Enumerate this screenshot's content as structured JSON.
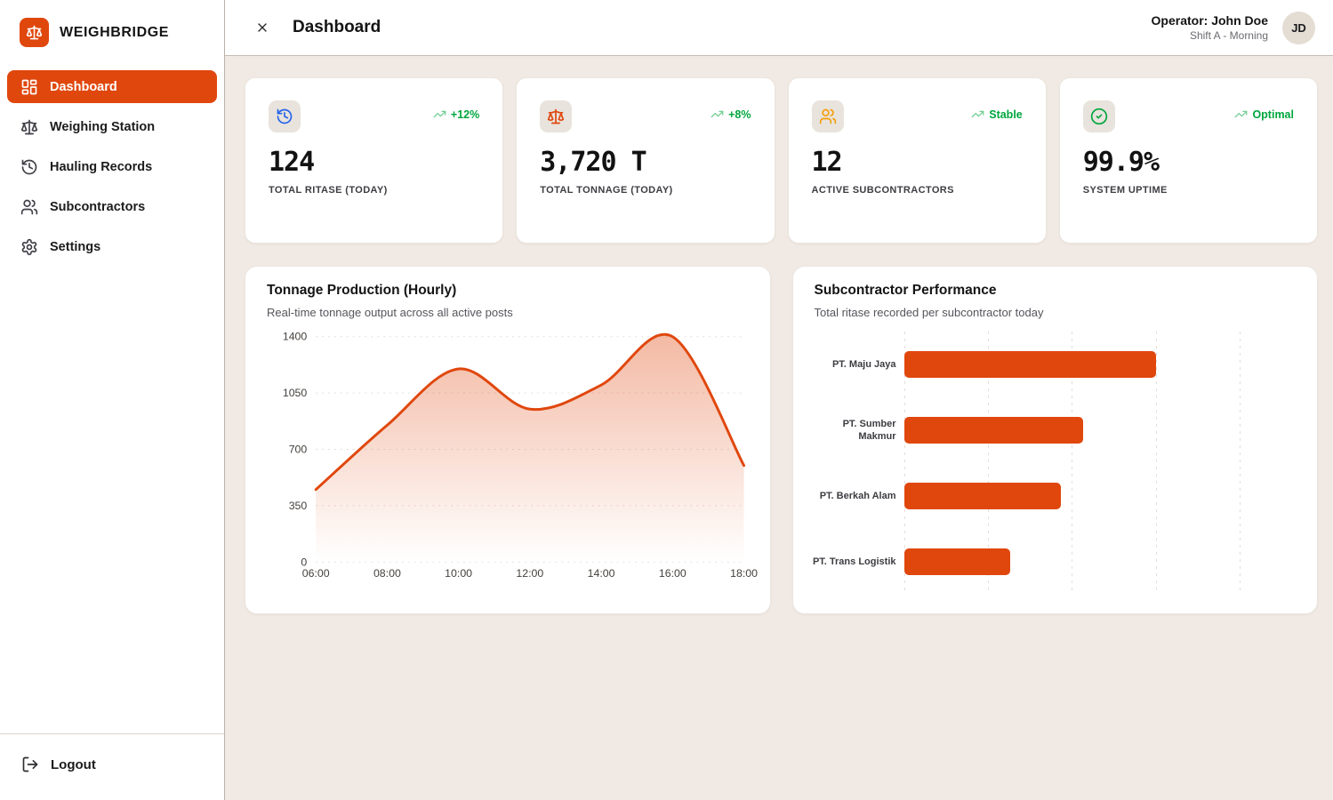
{
  "brand": {
    "name": "WEIGHBRIDGE"
  },
  "colors": {
    "primary": "#E0470D",
    "green": "#00A63E",
    "blue": "#2563EB",
    "amber": "#F59E0B",
    "content_background": "#F1EAE4"
  },
  "sidebar": {
    "items": [
      {
        "label": "Dashboard",
        "icon": "dashboard-icon",
        "active": true
      },
      {
        "label": "Weighing Station",
        "icon": "scale-icon",
        "active": false
      },
      {
        "label": "Hauling Records",
        "icon": "history-icon",
        "active": false
      },
      {
        "label": "Subcontractors",
        "icon": "users-icon",
        "active": false
      },
      {
        "label": "Settings",
        "icon": "gear-icon",
        "active": false
      }
    ],
    "logout_label": "Logout"
  },
  "topbar": {
    "title": "Dashboard",
    "operator": "Operator: John Doe",
    "shift": "Shift A - Morning",
    "avatar_initials": "JD"
  },
  "stats": [
    {
      "value": "124",
      "label": "TOTAL RITASE (TODAY)",
      "trend": "+12%",
      "icon": "history-icon",
      "icon_color": "#2563EB"
    },
    {
      "value": "3,720 T",
      "label": "TOTAL TONNAGE (TODAY)",
      "trend": "+8%",
      "icon": "scale-icon",
      "icon_color": "#E0470D"
    },
    {
      "value": "12",
      "label": "ACTIVE SUBCONTRACTORS",
      "trend": "Stable",
      "icon": "users-icon",
      "icon_color": "#F59E0B"
    },
    {
      "value": "99.9%",
      "label": "SYSTEM UPTIME",
      "trend": "Optimal",
      "icon": "check-circle-icon",
      "icon_color": "#00A63E"
    }
  ],
  "chart_data": [
    {
      "type": "area",
      "title": "Tonnage Production (Hourly)",
      "subtitle": "Real-time tonnage output across all active posts",
      "x": [
        "06:00",
        "08:00",
        "10:00",
        "12:00",
        "14:00",
        "16:00",
        "18:00"
      ],
      "values": [
        450,
        850,
        1200,
        950,
        1100,
        1400,
        600
      ],
      "xlabel": "",
      "ylabel": "",
      "ylim": [
        0,
        1400
      ],
      "yticks": [
        0,
        350,
        700,
        1050,
        1400
      ],
      "grid": true,
      "legend": false,
      "line_color": "#E0470D"
    },
    {
      "type": "bar",
      "orientation": "horizontal",
      "title": "Subcontractor Performance",
      "subtitle": "Total ritase recorded per subcontractor today",
      "categories": [
        "PT. Maju Jaya",
        "PT. Sumber Makmur",
        "PT. Berkah Alam",
        "PT. Trans Logistik"
      ],
      "values": [
        45,
        32,
        28,
        19
      ],
      "xlabel": "",
      "ylabel": "",
      "xlim": [
        0,
        60
      ],
      "gridline_step": 15,
      "grid": true,
      "legend": false,
      "bar_color": "#E0470D"
    }
  ]
}
